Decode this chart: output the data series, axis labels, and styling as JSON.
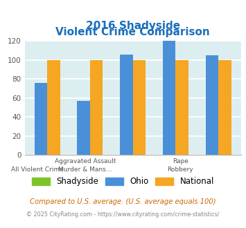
{
  "title_line1": "2016 Shadyside",
  "title_line2": "Violent Crime Comparison",
  "shadyside": [
    0,
    0,
    0,
    0,
    0
  ],
  "ohio": [
    76,
    57,
    106,
    120,
    105
  ],
  "national": [
    100,
    100,
    100,
    100,
    100
  ],
  "color_shadyside": "#7dc42a",
  "color_ohio": "#4a90d9",
  "color_national": "#f5a623",
  "ylim": [
    0,
    120
  ],
  "yticks": [
    0,
    20,
    40,
    60,
    80,
    100,
    120
  ],
  "background_color": "#ddeef0",
  "grid_color": "#ffffff",
  "title_color": "#1a6fbb",
  "top_labels": [
    "",
    "Aggravated Assault",
    "",
    "Rape",
    ""
  ],
  "bot_labels": [
    "All Violent Crime",
    "Murder & Mans...",
    "",
    "Robbery",
    ""
  ],
  "legend_labels": [
    "Shadyside",
    "Ohio",
    "National"
  ],
  "footnote1": "Compared to U.S. average. (U.S. average equals 100)",
  "footnote2": "© 2025 CityRating.com - https://www.cityrating.com/crime-statistics/",
  "footnote1_color": "#cc6600",
  "footnote2_color": "#888888"
}
